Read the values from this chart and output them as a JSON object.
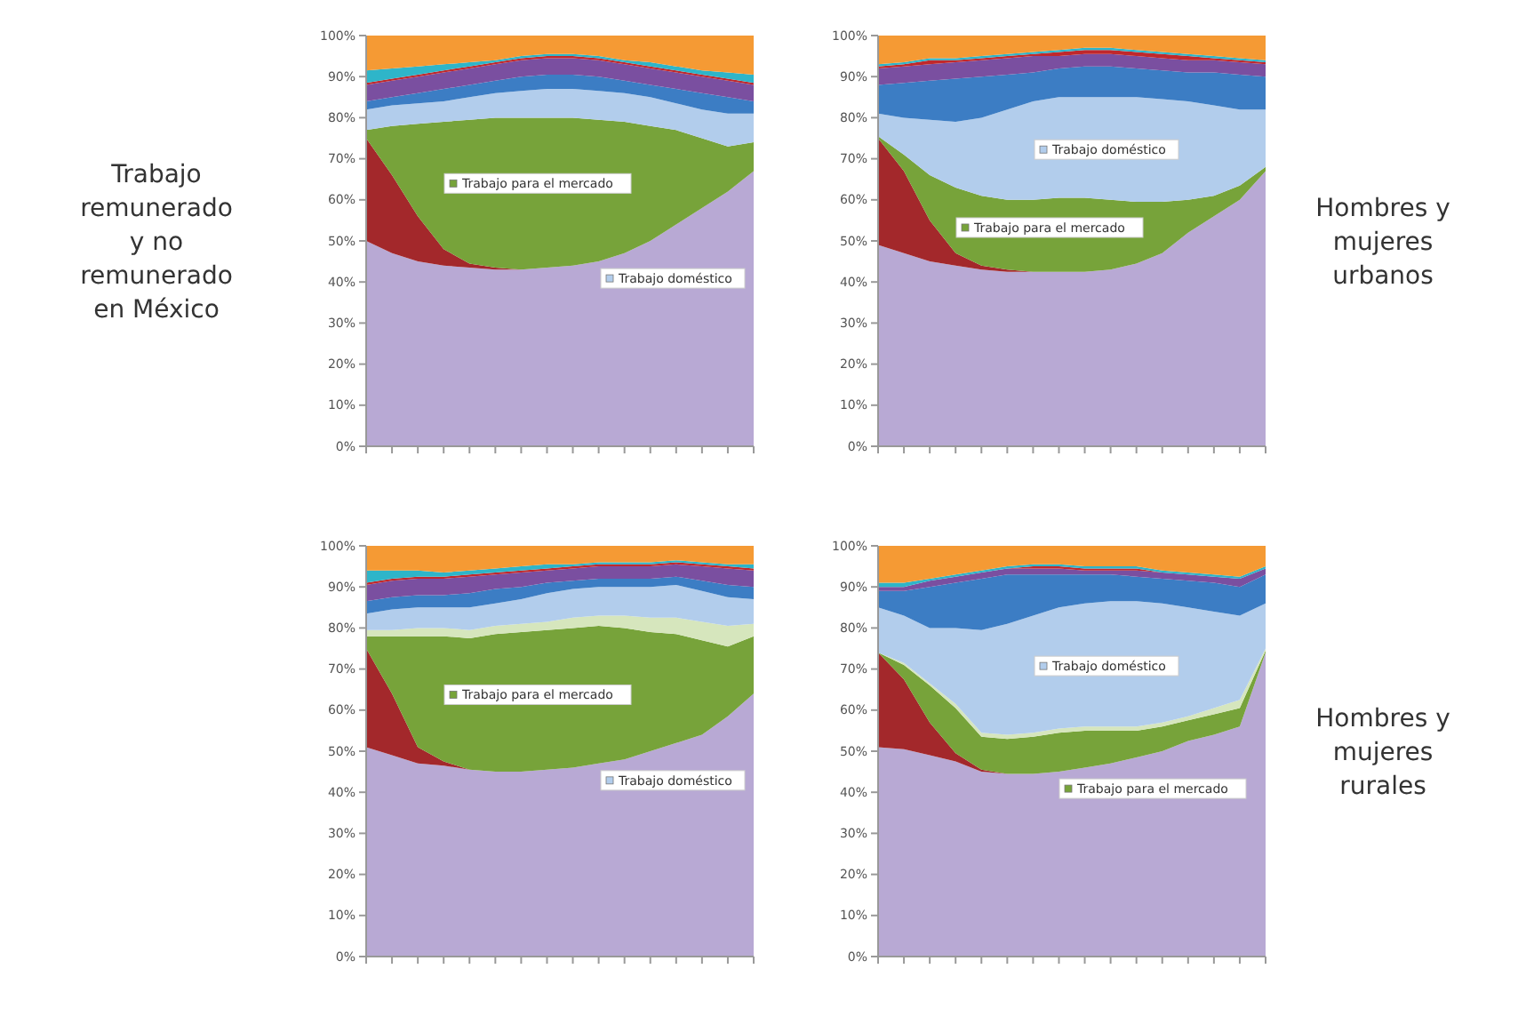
{
  "chart_data": [
    {
      "type": "area",
      "stacked": true,
      "legend": "center",
      "title": "Trabajo remunerado y no remunerado en México",
      "categories": [
        null,
        null,
        null,
        null,
        null,
        null,
        null,
        null,
        null,
        null,
        null,
        null,
        null,
        null,
        null,
        null
      ],
      "ylim": [
        0,
        100
      ],
      "yticks": [
        {
          "value": 0,
          "label": "0%"
        },
        {
          "value": 10,
          "label": "10%"
        },
        {
          "value": 20,
          "label": "20%"
        },
        {
          "value": 30,
          "label": "30%"
        },
        {
          "value": 40,
          "label": "40%"
        },
        {
          "value": 50,
          "label": "50%"
        },
        {
          "value": 60,
          "label": "60%"
        },
        {
          "value": 70,
          "label": "70%"
        },
        {
          "value": 80,
          "label": "80%"
        },
        {
          "value": 90,
          "label": "90%"
        },
        {
          "value": 100,
          "label": "100%"
        }
      ],
      "series": [
        {
          "color": "#b8a9d4",
          "values": [
            50,
            47,
            45,
            44,
            43.5,
            43,
            43,
            43.5,
            44,
            45,
            47,
            50,
            54,
            58,
            62,
            67
          ]
        },
        {
          "color": "#a3282b",
          "values": [
            25,
            19,
            11,
            4,
            1,
            0.5,
            0,
            0,
            0,
            0,
            0,
            0,
            0,
            0,
            0,
            0
          ]
        },
        {
          "name": "Trabajo para el mercado",
          "color": "#77a33a",
          "values": [
            2,
            12,
            22.5,
            31,
            35,
            36.5,
            37,
            36.5,
            36,
            34.5,
            32,
            28,
            23,
            17,
            11,
            7
          ]
        },
        {
          "name": "Trabajo doméstico",
          "color": "#b2cdec",
          "values": [
            5,
            5,
            5,
            5,
            5.5,
            6,
            6.5,
            7,
            7,
            7,
            7,
            7,
            6.5,
            7,
            8,
            7
          ]
        },
        {
          "color": "#3c7dc4",
          "values": [
            2,
            2,
            2.5,
            3,
            3,
            3,
            3.5,
            3.5,
            3.5,
            3.5,
            3,
            3,
            3.5,
            4,
            4,
            3
          ]
        },
        {
          "color": "#7a4fa0",
          "values": [
            4,
            4,
            4,
            4,
            4,
            4,
            4,
            4,
            4,
            4,
            4,
            4,
            4,
            4,
            4,
            4
          ]
        },
        {
          "color": "#c0282c",
          "values": [
            0.5,
            0.5,
            0.5,
            0.5,
            0.5,
            0.5,
            0.5,
            0.5,
            0.5,
            0.5,
            0.5,
            0.5,
            0.5,
            0.5,
            0.5,
            0.5
          ]
        },
        {
          "color": "#2eb5c9",
          "values": [
            3,
            2.5,
            2,
            1.5,
            1,
            0.5,
            0.5,
            0.5,
            0.5,
            0.5,
            0.5,
            1,
            1,
            1,
            1.5,
            2
          ]
        },
        {
          "color": "#f59a34",
          "values": [
            8.5,
            8,
            7.5,
            7,
            6.5,
            6,
            5,
            4.5,
            4.5,
            5,
            6,
            6.5,
            7.5,
            8.5,
            9,
            9.5
          ]
        }
      ]
    },
    {
      "type": "area",
      "stacked": true,
      "legend": "center",
      "annotations": [
        "Hombres y mujeres urbanos"
      ],
      "categories": [
        null,
        null,
        null,
        null,
        null,
        null,
        null,
        null,
        null,
        null,
        null,
        null,
        null,
        null,
        null,
        null
      ],
      "ylim": [
        0,
        100
      ],
      "yticks": [
        {
          "value": 0,
          "label": "0%"
        },
        {
          "value": 10,
          "label": "10%"
        },
        {
          "value": 20,
          "label": "20%"
        },
        {
          "value": 30,
          "label": "30%"
        },
        {
          "value": 40,
          "label": "40%"
        },
        {
          "value": 50,
          "label": "50%"
        },
        {
          "value": 60,
          "label": "60%"
        },
        {
          "value": 70,
          "label": "70%"
        },
        {
          "value": 80,
          "label": "80%"
        },
        {
          "value": 90,
          "label": "90%"
        },
        {
          "value": 100,
          "label": "100%"
        }
      ],
      "series": [
        {
          "color": "#b8a9d4",
          "values": [
            49,
            47,
            45,
            44,
            43,
            42.5,
            42.5,
            42.5,
            42.5,
            43,
            44.5,
            47,
            52,
            56,
            60,
            67
          ]
        },
        {
          "color": "#a3282b",
          "values": [
            26,
            20,
            10,
            3,
            1,
            0.5,
            0,
            0,
            0,
            0,
            0,
            0,
            0,
            0,
            0,
            0
          ]
        },
        {
          "name": "Trabajo para el mercado",
          "color": "#77a33a",
          "values": [
            0.5,
            4,
            11,
            16,
            17,
            17,
            17.5,
            18,
            18,
            17,
            15,
            12.5,
            8,
            5,
            3.5,
            1
          ]
        },
        {
          "name": "Trabajo doméstico",
          "color": "#b2cdec",
          "values": [
            5.5,
            9,
            13.5,
            16,
            19,
            22,
            24,
            24.5,
            24.5,
            25,
            25.5,
            25,
            24,
            22,
            18.5,
            14
          ]
        },
        {
          "color": "#3c7dc4",
          "values": [
            7,
            8.5,
            9.5,
            10.5,
            10,
            8.5,
            7,
            7,
            7.5,
            7.5,
            7,
            7,
            7,
            8,
            8.5,
            8
          ]
        },
        {
          "color": "#7a4fa0",
          "values": [
            4,
            4,
            4,
            4,
            4,
            4,
            4,
            3,
            3,
            3,
            3,
            3,
            3,
            3,
            3,
            3
          ]
        },
        {
          "color": "#c0282c",
          "values": [
            0.5,
            0.5,
            1,
            0.5,
            0.5,
            0.5,
            0.5,
            1,
            1,
            1,
            1,
            1,
            1,
            0.5,
            0.5,
            0.5
          ]
        },
        {
          "color": "#2eb5c9",
          "values": [
            0.5,
            0.5,
            0.5,
            0.5,
            0.5,
            0.5,
            0.5,
            0.5,
            0.5,
            0.5,
            0.5,
            0.5,
            0.5,
            0.5,
            0.5,
            0.5
          ]
        },
        {
          "color": "#f59a34",
          "values": [
            7,
            6.5,
            5.5,
            5.5,
            5,
            4.5,
            4,
            3.5,
            3,
            3,
            3.5,
            4,
            4.5,
            5,
            5.5,
            6
          ]
        }
      ]
    },
    {
      "type": "area",
      "stacked": true,
      "legend": "center",
      "categories": [
        null,
        null,
        null,
        null,
        null,
        null,
        null,
        null,
        null,
        null,
        null,
        null,
        null,
        null,
        null,
        null
      ],
      "ylim": [
        0,
        100
      ],
      "yticks": [
        {
          "value": 0,
          "label": "0%"
        },
        {
          "value": 10,
          "label": "10%"
        },
        {
          "value": 20,
          "label": "20%"
        },
        {
          "value": 30,
          "label": "30%"
        },
        {
          "value": 40,
          "label": "40%"
        },
        {
          "value": 50,
          "label": "50%"
        },
        {
          "value": 60,
          "label": "60%"
        },
        {
          "value": 70,
          "label": "70%"
        },
        {
          "value": 80,
          "label": "80%"
        },
        {
          "value": 90,
          "label": "90%"
        },
        {
          "value": 100,
          "label": "100%"
        }
      ],
      "series": [
        {
          "color": "#b8a9d4",
          "values": [
            51,
            49,
            47,
            46.5,
            45.5,
            45,
            45,
            45.5,
            46,
            47,
            48,
            50,
            52,
            54,
            58.5,
            64
          ]
        },
        {
          "color": "#a3282b",
          "values": [
            24,
            15,
            4,
            1,
            0,
            0,
            0,
            0,
            0,
            0,
            0,
            0,
            0,
            0,
            0,
            0
          ]
        },
        {
          "name": "Trabajo para el mercado",
          "color": "#77a33a",
          "values": [
            3,
            14,
            27,
            30.5,
            32,
            33.5,
            34,
            34,
            34,
            33.5,
            32,
            29,
            26.5,
            23,
            17,
            14
          ]
        },
        {
          "color": "#d6e6bd",
          "values": [
            1.5,
            1.5,
            2,
            2,
            2,
            2,
            2,
            2,
            2.5,
            2.5,
            3,
            3.5,
            4,
            4.5,
            5,
            3
          ]
        },
        {
          "name": "Trabajo doméstico",
          "color": "#b2cdec",
          "values": [
            4,
            5,
            5,
            5,
            5.5,
            5.5,
            6,
            7,
            7,
            7,
            7,
            7.5,
            8,
            7.5,
            7,
            6
          ]
        },
        {
          "color": "#3c7dc4",
          "values": [
            3,
            3,
            3,
            3,
            3.5,
            3.5,
            3,
            2.5,
            2,
            2,
            2,
            2,
            2,
            2.5,
            3,
            3
          ]
        },
        {
          "color": "#7a4fa0",
          "values": [
            4,
            4,
            4,
            4,
            4,
            3.5,
            3.5,
            3,
            3,
            3,
            3,
            3,
            3,
            3.5,
            4,
            4
          ]
        },
        {
          "color": "#c0282c",
          "values": [
            0.5,
            0.5,
            0.5,
            0.5,
            0.5,
            0.5,
            0.5,
            0.5,
            0.5,
            0.5,
            0.5,
            0.5,
            0.5,
            0.5,
            0.5,
            0.5
          ]
        },
        {
          "color": "#2eb5c9",
          "values": [
            3,
            2,
            1.5,
            1,
            1,
            1,
            1,
            1,
            0.5,
            0.5,
            0.5,
            0.5,
            0.5,
            0.5,
            0.5,
            1
          ]
        },
        {
          "color": "#f59a34",
          "values": [
            6,
            6,
            6,
            6.5,
            6,
            5.5,
            5,
            4.5,
            4.5,
            4,
            4,
            4,
            3.5,
            4,
            4.5,
            4.5
          ]
        }
      ]
    },
    {
      "type": "area",
      "stacked": true,
      "legend": "center",
      "annotations": [
        "Hombres y mujeres rurales"
      ],
      "categories": [
        null,
        null,
        null,
        null,
        null,
        null,
        null,
        null,
        null,
        null,
        null,
        null,
        null,
        null,
        null,
        null
      ],
      "ylim": [
        0,
        100
      ],
      "yticks": [
        {
          "value": 0,
          "label": "0%"
        },
        {
          "value": 10,
          "label": "10%"
        },
        {
          "value": 20,
          "label": "20%"
        },
        {
          "value": 30,
          "label": "30%"
        },
        {
          "value": 40,
          "label": "40%"
        },
        {
          "value": 50,
          "label": "50%"
        },
        {
          "value": 60,
          "label": "60%"
        },
        {
          "value": 70,
          "label": "70%"
        },
        {
          "value": 80,
          "label": "80%"
        },
        {
          "value": 90,
          "label": "90%"
        },
        {
          "value": 100,
          "label": "100%"
        }
      ],
      "series": [
        {
          "color": "#b8a9d4",
          "values": [
            51,
            50.5,
            49,
            47.5,
            45,
            44.5,
            44.5,
            45,
            46,
            47,
            48.5,
            50,
            52.5,
            54,
            56,
            74
          ]
        },
        {
          "color": "#a3282b",
          "values": [
            23,
            17,
            8,
            2,
            0.5,
            0,
            0,
            0,
            0,
            0,
            0,
            0,
            0,
            0,
            0,
            0
          ]
        },
        {
          "name": "Trabajo para el mercado",
          "color": "#77a33a",
          "values": [
            0,
            3.5,
            9,
            11,
            8,
            8.5,
            9,
            9.5,
            9,
            8,
            6.5,
            6,
            5,
            5,
            4.5,
            0.5
          ]
        },
        {
          "color": "#d6e6bd",
          "values": [
            0,
            0.5,
            0.5,
            1,
            1,
            1,
            1,
            1,
            1,
            1,
            1,
            1,
            1,
            1.5,
            2,
            0.5
          ]
        },
        {
          "name": "Trabajo doméstico",
          "color": "#b2cdec",
          "values": [
            11,
            11.5,
            13.5,
            18.5,
            25,
            27,
            28.5,
            29.5,
            30,
            30.5,
            30.5,
            29,
            26.5,
            23.5,
            20.5,
            11
          ]
        },
        {
          "color": "#3c7dc4",
          "values": [
            4,
            6,
            10,
            11,
            12.5,
            12,
            10,
            8,
            7,
            6.5,
            6,
            6,
            6.5,
            7,
            7,
            7
          ]
        },
        {
          "color": "#7a4fa0",
          "values": [
            1,
            1,
            1.5,
            1.5,
            1.5,
            1.5,
            1.5,
            1.5,
            1,
            1,
            1.5,
            1.5,
            1.5,
            1.5,
            2,
            1.5
          ]
        },
        {
          "color": "#c0282c",
          "values": [
            0,
            0,
            0,
            0,
            0,
            0,
            0.5,
            0.5,
            0.5,
            0.5,
            0.5,
            0,
            0,
            0,
            0,
            0
          ]
        },
        {
          "color": "#2eb5c9",
          "values": [
            1,
            1,
            0.5,
            0.5,
            0.5,
            0.5,
            0.5,
            0.5,
            0.5,
            0.5,
            0.5,
            0.5,
            0.5,
            0.5,
            0.5,
            0.5
          ]
        },
        {
          "color": "#f59a34",
          "values": [
            9,
            9,
            8,
            7,
            6,
            5,
            4.5,
            4.5,
            5,
            5,
            5,
            6,
            6.5,
            7,
            7.5,
            5
          ]
        }
      ]
    }
  ]
}
